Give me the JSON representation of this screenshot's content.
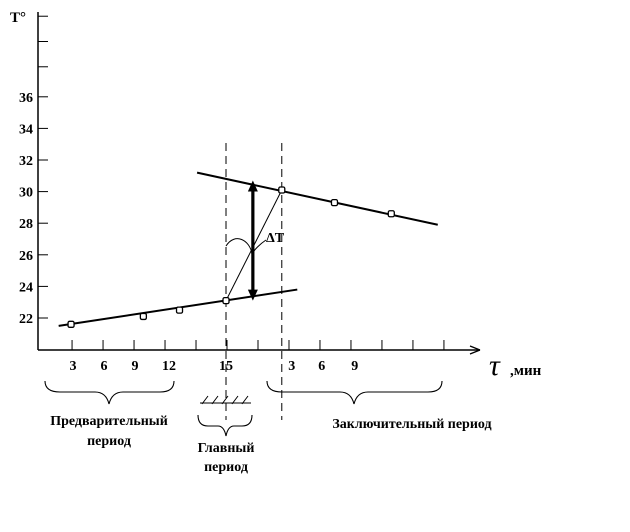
{
  "chart_data": {
    "type": "line",
    "title": "",
    "ylabel": "T°",
    "xlabel_symbol": "τ",
    "xlabel": ",мин",
    "ylim": [
      20.5,
      37.5
    ],
    "y_ticks": [
      22,
      24,
      26,
      28,
      30,
      32,
      34,
      36
    ],
    "x_tick_labels": [
      "3",
      "6",
      "9",
      "12",
      "15",
      "3",
      "6",
      "9"
    ],
    "delta_label": "ΔT",
    "series": [
      {
        "segment": "pre",
        "points": [
          {
            "t": 0,
            "T": 21.6
          },
          {
            "t": 7,
            "T": 22.1
          },
          {
            "t": 10.5,
            "T": 22.5
          },
          {
            "t": 15,
            "T": 23.1
          }
        ]
      },
      {
        "segment": "main",
        "points": [
          {
            "t": 15,
            "T": 23.1
          },
          {
            "t": 20.4,
            "T": 30.1
          }
        ]
      },
      {
        "segment": "post",
        "points": [
          {
            "t": 20.4,
            "T": 30.1
          },
          {
            "t": 25.5,
            "T": 29.3
          },
          {
            "t": 31,
            "T": 28.6
          }
        ]
      }
    ],
    "fit_lines": [
      {
        "from": {
          "t": -1.2,
          "T": 21.5
        },
        "to": {
          "t": 21.9,
          "T": 23.8
        }
      },
      {
        "from": {
          "t": 12.2,
          "T": 31.2
        },
        "to": {
          "t": 35.5,
          "T": 27.9
        }
      }
    ],
    "period_bounds": [
      15,
      20.4
    ],
    "delta_arrow": {
      "t": 17.6,
      "T_low": 23.1,
      "T_high": 30.7
    }
  },
  "periods": {
    "pre": "Предварительный\nпериод",
    "main": "Главный\nпериод",
    "post": "Заключительный период"
  }
}
